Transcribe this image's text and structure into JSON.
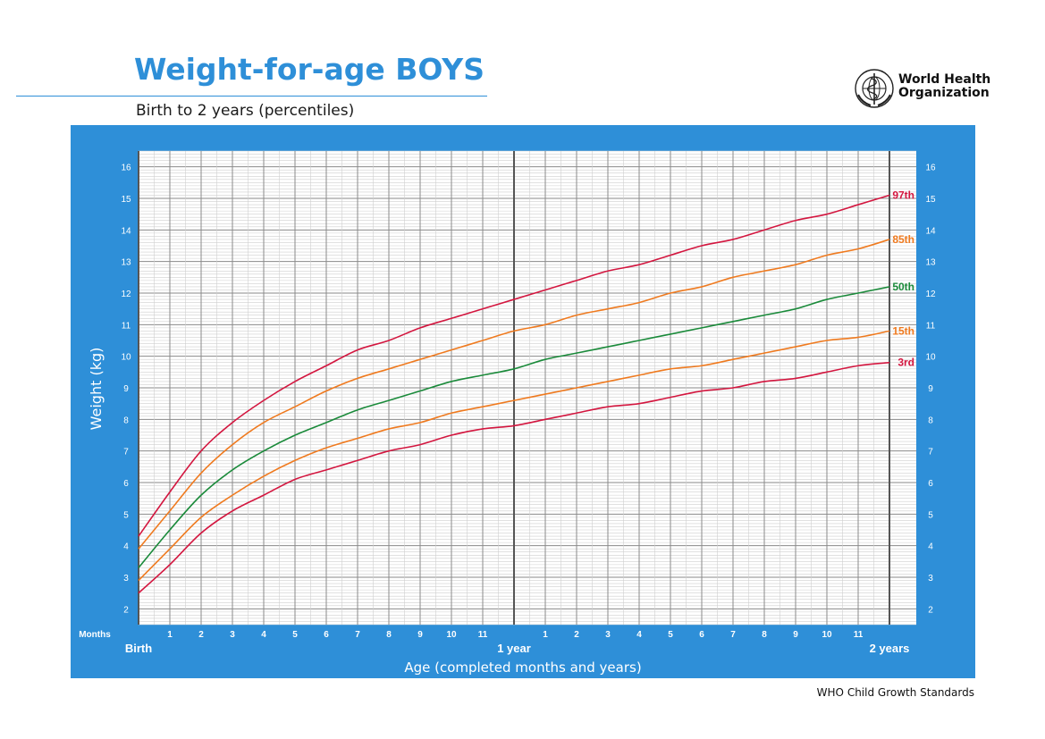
{
  "header": {
    "title": "Weight-for-age BOYS",
    "subtitle": "Birth to 2 years (percentiles)",
    "org_line1": "World Health",
    "org_line2": "Organization"
  },
  "footer": {
    "text": "WHO Child Growth Standards"
  },
  "colors": {
    "brand_blue": "#2e8fd8",
    "panel_blue": "#2e8fd8",
    "p3": "#d3163f",
    "p15": "#ef7a1f",
    "p50": "#1a8a3a",
    "p85": "#ef7a1f",
    "p97": "#d3163f"
  },
  "chart_data": {
    "type": "line",
    "ylabel": "Weight (kg)",
    "xlabel": "Age (completed months and years)",
    "x_unit_label": "Months",
    "xlim": [
      0,
      24
    ],
    "ylim": [
      1.5,
      16.5
    ],
    "yticks": [
      2,
      3,
      4,
      5,
      6,
      7,
      8,
      9,
      10,
      11,
      12,
      13,
      14,
      15,
      16
    ],
    "x_month_ticks": [
      {
        "x": 1,
        "label": "1"
      },
      {
        "x": 2,
        "label": "2"
      },
      {
        "x": 3,
        "label": "3"
      },
      {
        "x": 4,
        "label": "4"
      },
      {
        "x": 5,
        "label": "5"
      },
      {
        "x": 6,
        "label": "6"
      },
      {
        "x": 7,
        "label": "7"
      },
      {
        "x": 8,
        "label": "8"
      },
      {
        "x": 9,
        "label": "9"
      },
      {
        "x": 10,
        "label": "10"
      },
      {
        "x": 11,
        "label": "11"
      },
      {
        "x": 13,
        "label": "1"
      },
      {
        "x": 14,
        "label": "2"
      },
      {
        "x": 15,
        "label": "3"
      },
      {
        "x": 16,
        "label": "4"
      },
      {
        "x": 17,
        "label": "5"
      },
      {
        "x": 18,
        "label": "6"
      },
      {
        "x": 19,
        "label": "7"
      },
      {
        "x": 20,
        "label": "8"
      },
      {
        "x": 21,
        "label": "9"
      },
      {
        "x": 22,
        "label": "10"
      },
      {
        "x": 23,
        "label": "11"
      }
    ],
    "x_year_labels": [
      {
        "x": 0,
        "label": "Birth"
      },
      {
        "x": 12,
        "label": "1 year"
      },
      {
        "x": 24,
        "label": "2 years"
      }
    ],
    "x": [
      0,
      1,
      2,
      3,
      4,
      5,
      6,
      7,
      8,
      9,
      10,
      11,
      12,
      13,
      14,
      15,
      16,
      17,
      18,
      19,
      20,
      21,
      22,
      23,
      24
    ],
    "series": [
      {
        "name": "3rd",
        "key": "p3",
        "values": [
          2.5,
          3.4,
          4.4,
          5.1,
          5.6,
          6.1,
          6.4,
          6.7,
          7.0,
          7.2,
          7.5,
          7.7,
          7.8,
          8.0,
          8.2,
          8.4,
          8.5,
          8.7,
          8.9,
          9.0,
          9.2,
          9.3,
          9.5,
          9.7,
          9.8
        ]
      },
      {
        "name": "15th",
        "key": "p15",
        "values": [
          2.9,
          3.9,
          4.9,
          5.6,
          6.2,
          6.7,
          7.1,
          7.4,
          7.7,
          7.9,
          8.2,
          8.4,
          8.6,
          8.8,
          9.0,
          9.2,
          9.4,
          9.6,
          9.7,
          9.9,
          10.1,
          10.3,
          10.5,
          10.6,
          10.8
        ]
      },
      {
        "name": "50th",
        "key": "p50",
        "values": [
          3.3,
          4.5,
          5.6,
          6.4,
          7.0,
          7.5,
          7.9,
          8.3,
          8.6,
          8.9,
          9.2,
          9.4,
          9.6,
          9.9,
          10.1,
          10.3,
          10.5,
          10.7,
          10.9,
          11.1,
          11.3,
          11.5,
          11.8,
          12.0,
          12.2
        ]
      },
      {
        "name": "85th",
        "key": "p85",
        "values": [
          3.9,
          5.1,
          6.3,
          7.2,
          7.9,
          8.4,
          8.9,
          9.3,
          9.6,
          9.9,
          10.2,
          10.5,
          10.8,
          11.0,
          11.3,
          11.5,
          11.7,
          12.0,
          12.2,
          12.5,
          12.7,
          12.9,
          13.2,
          13.4,
          13.7
        ]
      },
      {
        "name": "97th",
        "key": "p97",
        "values": [
          4.3,
          5.7,
          7.0,
          7.9,
          8.6,
          9.2,
          9.7,
          10.2,
          10.5,
          10.9,
          11.2,
          11.5,
          11.8,
          12.1,
          12.4,
          12.7,
          12.9,
          13.2,
          13.5,
          13.7,
          14.0,
          14.3,
          14.5,
          14.8,
          15.1
        ]
      }
    ]
  }
}
